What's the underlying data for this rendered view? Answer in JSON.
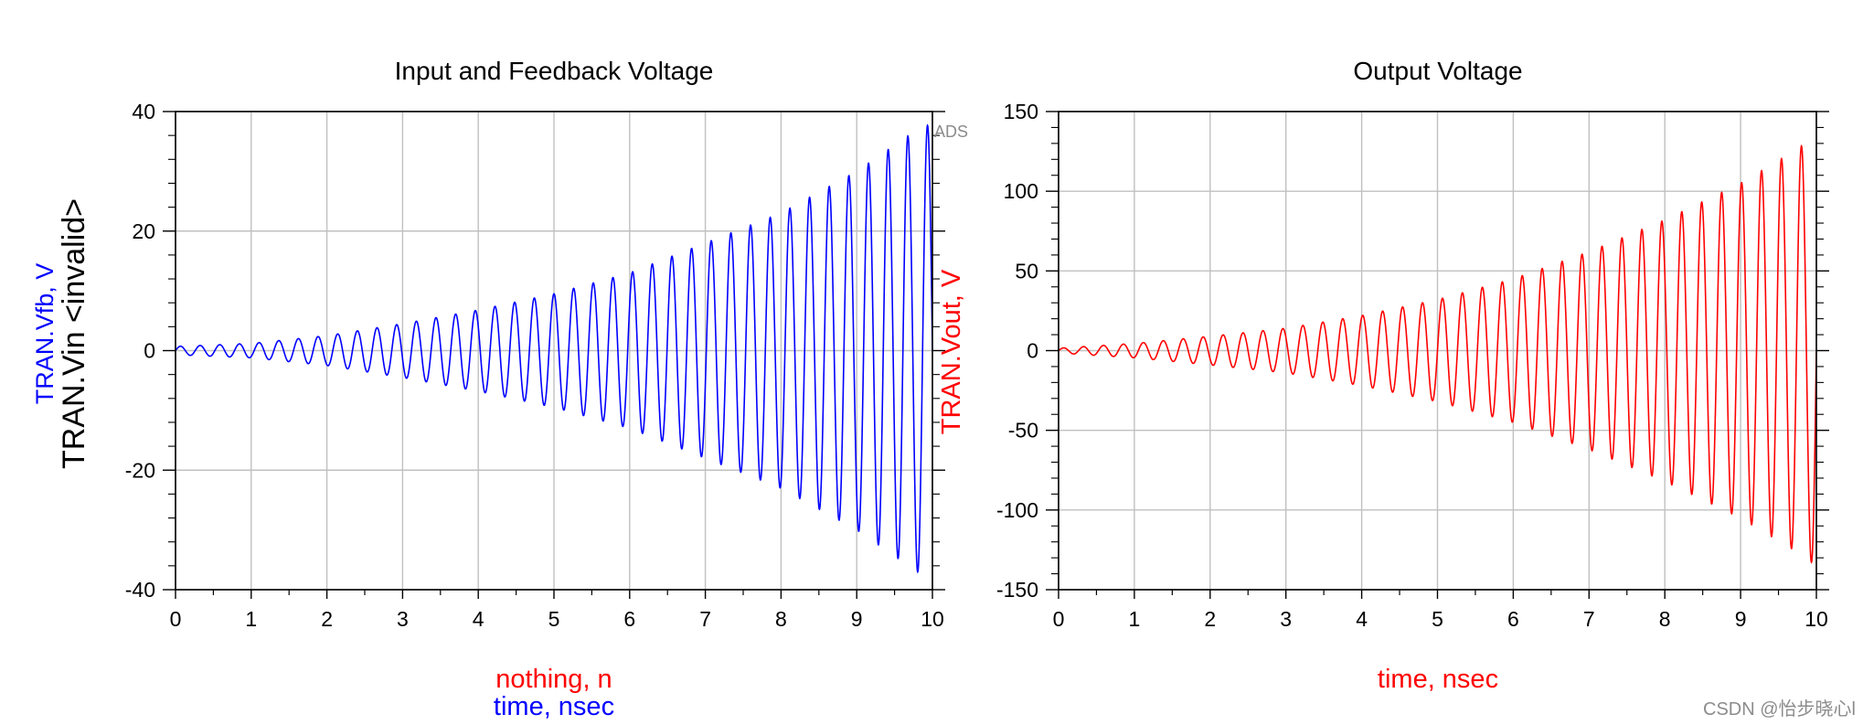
{
  "watermark": "CSDN @怡步晓心l",
  "colors": {
    "vfb": "#0000ff",
    "vin": "#000000",
    "vout": "#ff0000",
    "grid": "#c0c0c0",
    "axis": "#000000"
  },
  "chart_data": [
    {
      "type": "line",
      "title": "Input and Feedback Voltage",
      "xlabel_lines": [
        "nothing, n",
        "time, nsec"
      ],
      "ylabel_lines": [
        "TRAN.Vfb, V",
        "TRAN.Vin <invalid>"
      ],
      "corner_text": "ADS",
      "xlim": [
        0,
        10
      ],
      "ylim": [
        -40,
        40
      ],
      "x_ticks": [
        0,
        1,
        2,
        3,
        4,
        5,
        6,
        7,
        8,
        9,
        10
      ],
      "x_tick_labels": [
        "0",
        "1",
        "2",
        "3",
        "4",
        "5",
        "6",
        "7",
        "8",
        "9",
        "10"
      ],
      "y_ticks": [
        -40,
        -20,
        0,
        20,
        40
      ],
      "y_tick_labels": [
        "-40",
        "-20",
        "0",
        "20",
        "40"
      ],
      "grid": true,
      "series": [
        {
          "name": "TRAN.Vfb",
          "waveform": "growing-sinusoid",
          "frequency_ghz": 3.85,
          "envelope_x": [
            0,
            1,
            2,
            3,
            4,
            5,
            6,
            7,
            8,
            9,
            9.8,
            10
          ],
          "envelope_y": [
            0.7,
            1.2,
            2.5,
            4.5,
            6.8,
            9.5,
            13,
            18,
            23,
            30,
            37,
            38
          ]
        }
      ]
    },
    {
      "type": "line",
      "title": "Output Voltage",
      "xlabel_lines": [
        "time, nsec"
      ],
      "ylabel_lines": [
        "TRAN.Vout, V"
      ],
      "xlim": [
        0,
        10
      ],
      "ylim": [
        -150,
        150
      ],
      "x_ticks": [
        0,
        1,
        2,
        3,
        4,
        5,
        6,
        7,
        8,
        9,
        10
      ],
      "x_tick_labels": [
        "0",
        "1",
        "2",
        "3",
        "4",
        "5",
        "6",
        "7",
        "8",
        "9",
        "10"
      ],
      "y_ticks": [
        -150,
        -100,
        -50,
        0,
        50,
        100,
        150
      ],
      "y_tick_labels": [
        "-150",
        "-100",
        "-50",
        "0",
        "50",
        "100",
        "150"
      ],
      "grid": true,
      "series": [
        {
          "name": "TRAN.Vout",
          "waveform": "growing-sinusoid",
          "frequency_ghz": 3.8,
          "envelope_x": [
            0,
            1,
            2,
            3,
            4,
            5,
            6,
            7,
            8,
            9,
            9.7,
            10
          ],
          "envelope_y": [
            1.5,
            4.5,
            9,
            14,
            22,
            32,
            45,
            62,
            82,
            105,
            125,
            135
          ]
        }
      ]
    }
  ]
}
